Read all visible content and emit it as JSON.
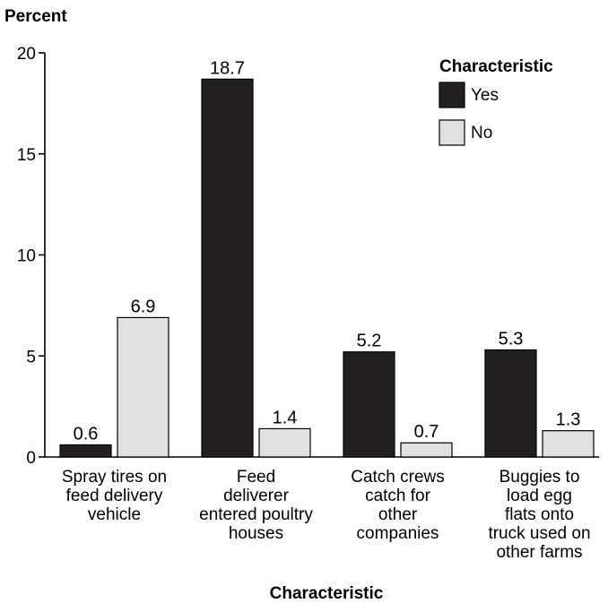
{
  "chart_data": {
    "type": "bar",
    "ylabel": "Percent",
    "xlabel": "Characteristic",
    "ylim": [
      0,
      20
    ],
    "yticks": [
      0,
      5,
      10,
      15,
      20
    ],
    "categories": [
      [
        "Spray tires on",
        "feed delivery",
        "vehicle"
      ],
      [
        "Feed",
        "deliverer",
        "entered poultry",
        "houses"
      ],
      [
        "Catch crews",
        "catch for",
        "other",
        "companies"
      ],
      [
        "Buggies to",
        "load egg",
        "flats onto",
        "truck used on",
        "other farms"
      ]
    ],
    "series": [
      {
        "name": "Yes",
        "values": [
          0.6,
          18.7,
          5.2,
          5.3
        ],
        "color": "#231f20"
      },
      {
        "name": "No",
        "values": [
          6.9,
          1.4,
          0.7,
          1.3
        ],
        "color": "#e0e1e3"
      }
    ],
    "legend": {
      "title": "Characteristic",
      "position": "top-right"
    },
    "grid": false
  }
}
